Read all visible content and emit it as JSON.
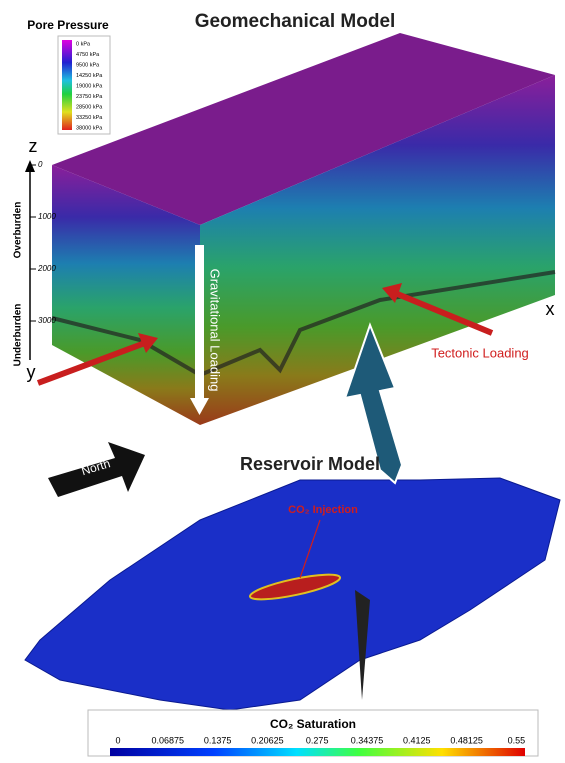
{
  "legend": {
    "title": "Pore Pressure",
    "labels": [
      "0 kPa",
      "4750 kPa",
      "9500 kPa",
      "14250 kPa",
      "19000 kPa",
      "23750 kPa",
      "28500 kPa",
      "33250 kPa",
      "38000 kPa"
    ]
  },
  "title": "Geomechanical Model",
  "axes": {
    "z": "z",
    "x": "x",
    "y": "y",
    "depth_ticks": [
      "0",
      "1000",
      "2000",
      "3000"
    ]
  },
  "layers": {
    "overburden": "Overburden",
    "underburden": "Underburden"
  },
  "annotations": {
    "gravitational": "Gravitational Loading",
    "tectonic": "Tectonic Loading",
    "north": "North",
    "injection": "CO₂ Injection"
  },
  "reservoir": {
    "title": "Reservoir Model"
  },
  "colorbar": {
    "title": "CO₂ Saturation",
    "ticks": [
      "0",
      "0.06875",
      "0.1375",
      "0.20625",
      "0.275",
      "0.34375",
      "0.4125",
      "0.48125",
      "0.55"
    ]
  }
}
